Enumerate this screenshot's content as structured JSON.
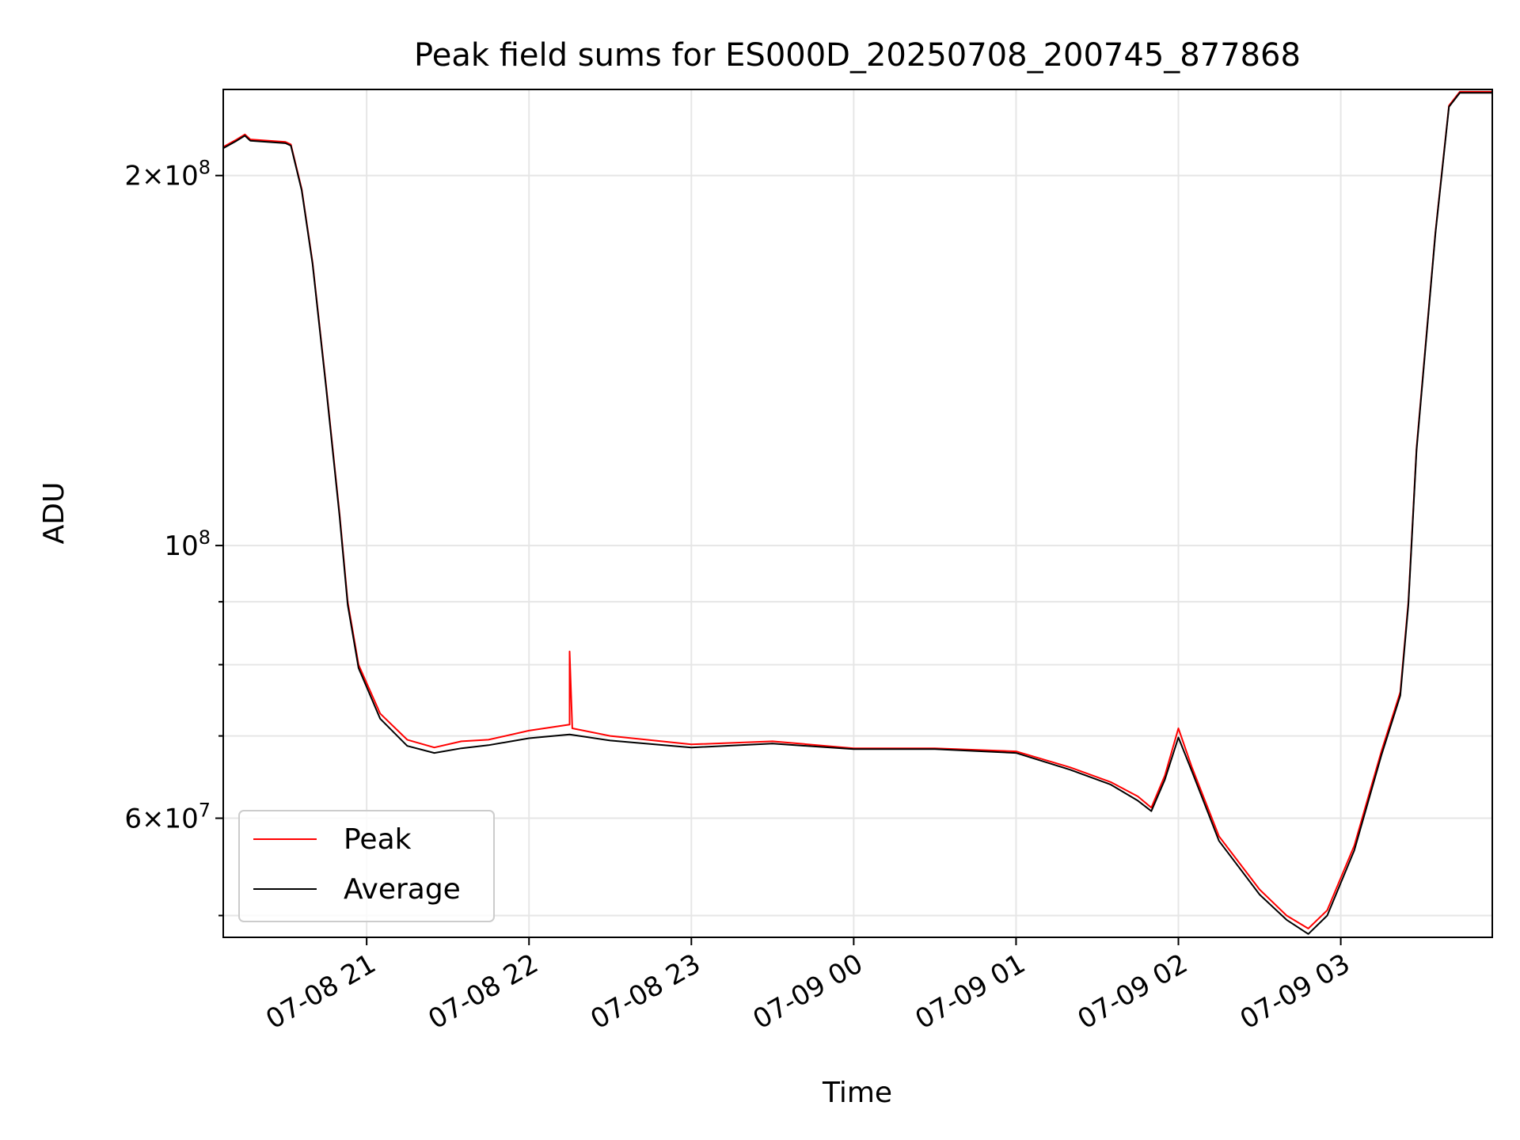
{
  "chart_data": {
    "type": "line",
    "title": "Peak field sums for ES000D_20250708_200745_877868",
    "xlabel": "Time",
    "ylabel": "ADU",
    "yscale": "log",
    "ylim": [
      48000000,
      235000000
    ],
    "xlim": [
      "2025-07-08 20:07",
      "2025-07-09 03:56"
    ],
    "grid": true,
    "legend_position": "lower-left",
    "x_ticks": [
      {
        "t": "2025-07-08 21:00",
        "label": "07-08 21"
      },
      {
        "t": "2025-07-08 22:00",
        "label": "07-08 22"
      },
      {
        "t": "2025-07-08 23:00",
        "label": "07-08 23"
      },
      {
        "t": "2025-07-09 00:00",
        "label": "07-09 00"
      },
      {
        "t": "2025-07-09 01:00",
        "label": "07-09 01"
      },
      {
        "t": "2025-07-09 02:00",
        "label": "07-09 02"
      },
      {
        "t": "2025-07-09 03:00",
        "label": "07-09 03"
      }
    ],
    "y_ticks_major": [
      {
        "v": 60000000,
        "base": "6",
        "exp": "7"
      },
      {
        "v": 100000000,
        "base": "",
        "exp": "8"
      },
      {
        "v": 200000000,
        "base": "2",
        "exp": "8"
      }
    ],
    "y_ticks_minor": [
      50000000,
      70000000,
      80000000,
      90000000
    ],
    "series": [
      {
        "name": "Peak",
        "color": "#ff0000",
        "points": [
          [
            "2025-07-08 20:07",
            211000000
          ],
          [
            "2025-07-08 20:12",
            214000000
          ],
          [
            "2025-07-08 20:15",
            216000000
          ],
          [
            "2025-07-08 20:17",
            214000000
          ],
          [
            "2025-07-08 20:30",
            213000000
          ],
          [
            "2025-07-08 20:32",
            212000000
          ],
          [
            "2025-07-08 20:36",
            195000000
          ],
          [
            "2025-07-08 20:40",
            170000000
          ],
          [
            "2025-07-08 20:45",
            135000000
          ],
          [
            "2025-07-08 20:50",
            106000000
          ],
          [
            "2025-07-08 20:53",
            90000000
          ],
          [
            "2025-07-08 20:57",
            80000000
          ],
          [
            "2025-07-08 21:05",
            73000000
          ],
          [
            "2025-07-08 21:15",
            69500000
          ],
          [
            "2025-07-08 21:25",
            68500000
          ],
          [
            "2025-07-08 21:35",
            69300000
          ],
          [
            "2025-07-08 21:45",
            69500000
          ],
          [
            "2025-07-08 22:00",
            70700000
          ],
          [
            "2025-07-08 22:15",
            71500000
          ],
          [
            "2025-07-08 22:15",
            82000000
          ],
          [
            "2025-07-08 22:16",
            71000000
          ],
          [
            "2025-07-08 22:30",
            70000000
          ],
          [
            "2025-07-08 23:00",
            68900000
          ],
          [
            "2025-07-08 23:30",
            69300000
          ],
          [
            "2025-07-09 00:00",
            68400000
          ],
          [
            "2025-07-09 00:30",
            68400000
          ],
          [
            "2025-07-09 01:00",
            68000000
          ],
          [
            "2025-07-09 01:20",
            66000000
          ],
          [
            "2025-07-09 01:35",
            64200000
          ],
          [
            "2025-07-09 01:45",
            62500000
          ],
          [
            "2025-07-09 01:50",
            61200000
          ],
          [
            "2025-07-09 01:55",
            65000000
          ],
          [
            "2025-07-09 02:00",
            71000000
          ],
          [
            "2025-07-09 02:05",
            66000000
          ],
          [
            "2025-07-09 02:15",
            58000000
          ],
          [
            "2025-07-09 02:30",
            52500000
          ],
          [
            "2025-07-09 02:40",
            50000000
          ],
          [
            "2025-07-09 02:48",
            48800000
          ],
          [
            "2025-07-09 02:55",
            50500000
          ],
          [
            "2025-07-09 03:05",
            57000000
          ],
          [
            "2025-07-09 03:15",
            68000000
          ],
          [
            "2025-07-09 03:22",
            76000000
          ],
          [
            "2025-07-09 03:25",
            90000000
          ],
          [
            "2025-07-09 03:28",
            120000000
          ],
          [
            "2025-07-09 03:35",
            180000000
          ],
          [
            "2025-07-09 03:40",
            228000000
          ],
          [
            "2025-07-09 03:44",
            234000000
          ],
          [
            "2025-07-09 03:56",
            234000000
          ]
        ]
      },
      {
        "name": "Average",
        "color": "#000000",
        "points": [
          [
            "2025-07-08 20:07",
            210500000
          ],
          [
            "2025-07-08 20:12",
            213500000
          ],
          [
            "2025-07-08 20:15",
            215500000
          ],
          [
            "2025-07-08 20:17",
            213500000
          ],
          [
            "2025-07-08 20:30",
            212500000
          ],
          [
            "2025-07-08 20:32",
            211500000
          ],
          [
            "2025-07-08 20:36",
            194500000
          ],
          [
            "2025-07-08 20:40",
            169500000
          ],
          [
            "2025-07-08 20:45",
            134500000
          ],
          [
            "2025-07-08 20:50",
            105500000
          ],
          [
            "2025-07-08 20:53",
            89500000
          ],
          [
            "2025-07-08 20:57",
            79500000
          ],
          [
            "2025-07-08 21:05",
            72300000
          ],
          [
            "2025-07-08 21:15",
            68700000
          ],
          [
            "2025-07-08 21:25",
            67800000
          ],
          [
            "2025-07-08 21:35",
            68400000
          ],
          [
            "2025-07-08 21:45",
            68800000
          ],
          [
            "2025-07-08 22:00",
            69700000
          ],
          [
            "2025-07-08 22:15",
            70200000
          ],
          [
            "2025-07-08 22:30",
            69400000
          ],
          [
            "2025-07-08 23:00",
            68500000
          ],
          [
            "2025-07-08 23:30",
            69000000
          ],
          [
            "2025-07-09 00:00",
            68300000
          ],
          [
            "2025-07-09 00:30",
            68300000
          ],
          [
            "2025-07-09 01:00",
            67800000
          ],
          [
            "2025-07-09 01:20",
            65700000
          ],
          [
            "2025-07-09 01:35",
            63900000
          ],
          [
            "2025-07-09 01:45",
            62000000
          ],
          [
            "2025-07-09 01:50",
            60800000
          ],
          [
            "2025-07-09 01:55",
            64500000
          ],
          [
            "2025-07-09 02:00",
            69800000
          ],
          [
            "2025-07-09 02:05",
            65500000
          ],
          [
            "2025-07-09 02:15",
            57500000
          ],
          [
            "2025-07-09 02:30",
            52000000
          ],
          [
            "2025-07-09 02:40",
            49600000
          ],
          [
            "2025-07-09 02:48",
            48300000
          ],
          [
            "2025-07-09 02:55",
            50000000
          ],
          [
            "2025-07-09 03:05",
            56500000
          ],
          [
            "2025-07-09 03:15",
            67500000
          ],
          [
            "2025-07-09 03:22",
            75500000
          ],
          [
            "2025-07-09 03:25",
            89500000
          ],
          [
            "2025-07-09 03:28",
            119500000
          ],
          [
            "2025-07-09 03:35",
            179500000
          ],
          [
            "2025-07-09 03:40",
            227500000
          ],
          [
            "2025-07-09 03:44",
            233500000
          ],
          [
            "2025-07-09 03:56",
            233500000
          ]
        ]
      }
    ]
  }
}
